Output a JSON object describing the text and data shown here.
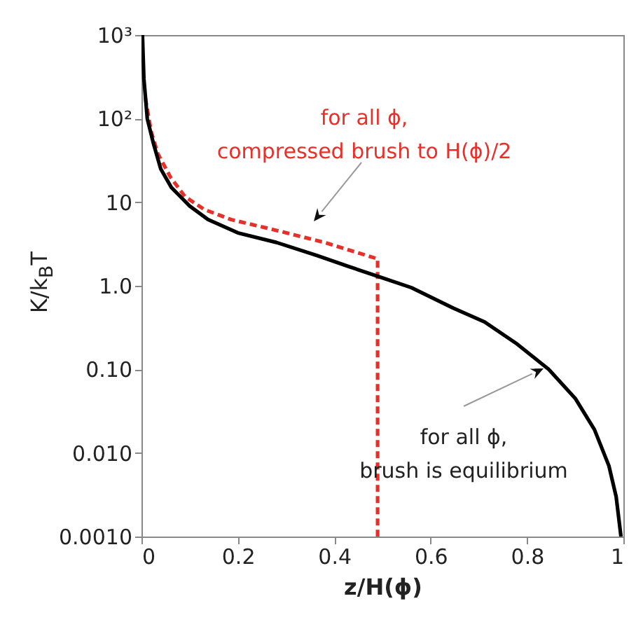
{
  "chart_data": {
    "type": "line",
    "xlabel": "z/H(ϕ)",
    "ylabel": "K/k$_{B}$T",
    "log": "y",
    "grid": false,
    "marker": "none",
    "xlim": [
      0,
      1
    ],
    "xticks": [
      0,
      0.2,
      0.4,
      0.6,
      0.8,
      1
    ],
    "ylim": [
      0.001,
      1000
    ],
    "yticks": [
      {
        "value": 0.001,
        "label": "0.0010"
      },
      {
        "value": 0.01,
        "label": "0.010"
      },
      {
        "value": 0.1,
        "label": "0.10"
      },
      {
        "value": 1,
        "label": "1.0"
      },
      10,
      {
        "value": 100,
        "label": "10²"
      },
      {
        "value": 1000,
        "label": "10³"
      }
    ],
    "series": [
      {
        "color": "#e8302a",
        "line_style": "dashed",
        "x": [
          0.008,
          0.02,
          0.034,
          0.06,
          0.09,
          0.13,
          0.186,
          0.28,
          0.38,
          0.49,
          0.49
        ],
        "values": [
          177,
          70,
          38,
          20,
          11.7,
          8.2,
          6.2,
          4.6,
          3.3,
          2.1,
          0.001
        ]
      },
      {
        "color": "#000000",
        "line_style": "solid",
        "x": [
          0.002,
          0.005,
          0.012,
          0.025,
          0.04,
          0.062,
          0.1,
          0.138,
          0.2,
          0.28,
          0.364,
          0.43,
          0.497,
          0.56,
          0.647,
          0.712,
          0.78,
          0.845,
          0.9,
          0.94,
          0.97,
          0.985,
          0.995
        ],
        "values": [
          1000,
          300,
          100,
          50,
          25,
          15,
          9,
          6.2,
          4.3,
          3.3,
          2.3,
          1.7,
          1.26,
          0.95,
          0.54,
          0.37,
          0.2,
          0.1,
          0.045,
          0.019,
          0.007,
          0.003,
          0.001
        ]
      }
    ],
    "annotations": [
      "for all ϕ,\ncompressed brush to H(ϕ)/2",
      "for all ϕ,\nbrush is equilibrium"
    ]
  }
}
